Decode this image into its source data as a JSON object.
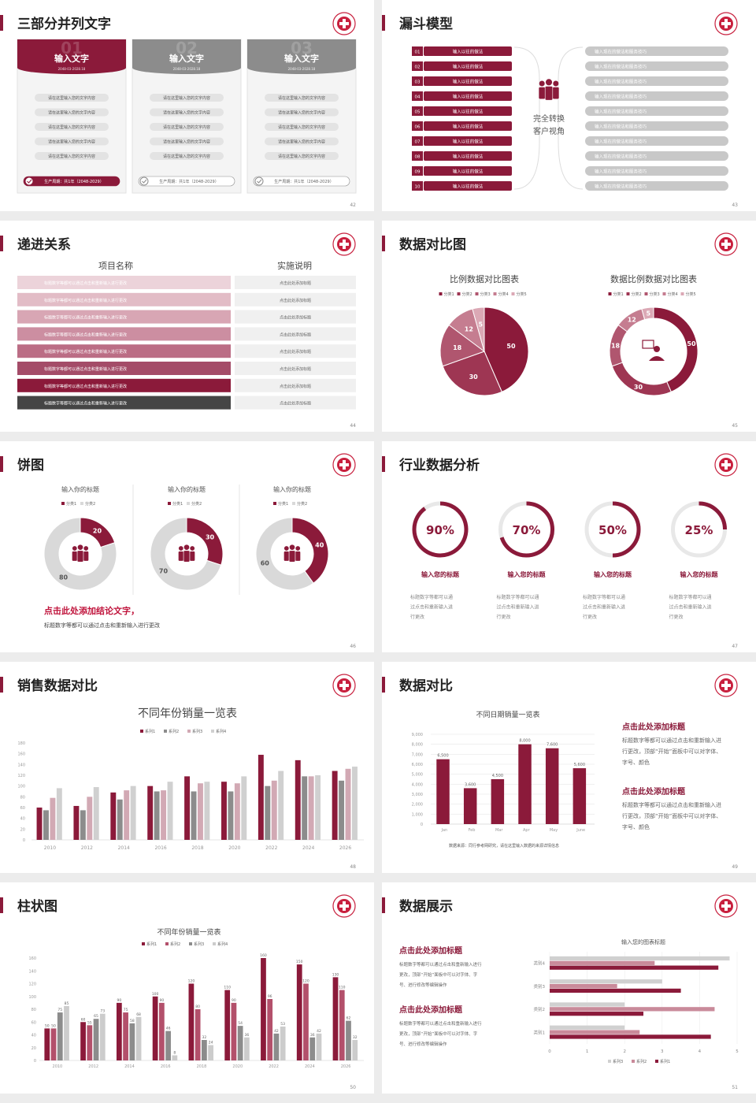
{
  "slides": [
    {
      "title": "三部分并列文字",
      "page": "42",
      "cards": [
        {
          "num": "01",
          "title": "输入文字",
          "date": "2048-03-2028.18",
          "items": [
            "请在这里输入您的文字内容",
            "请在这里输入您的文字内容",
            "请在这里输入您的文字内容",
            "请在这里输入您的文字内容",
            "请在这里输入您的文字内容"
          ],
          "footer": "生产周期：共1年（2048-2029）"
        },
        {
          "num": "02",
          "title": "输入文字",
          "date": "2048-03-2028.18",
          "items": [
            "请在这里输入您的文字内容",
            "请在这里输入您的文字内容",
            "请在这里输入您的文字内容",
            "请在这里输入您的文字内容",
            "请在这里输入您的文字内容"
          ],
          "footer": "生产周期：共1年（2048-2029）"
        },
        {
          "num": "03",
          "title": "输入文字",
          "date": "2048-03-2028.18",
          "items": [
            "请在这里输入您的文字内容",
            "请在这里输入您的文字内容",
            "请在这里输入您的文字内容",
            "请在这里输入您的文字内容",
            "请在这里输入您的文字内容"
          ],
          "footer": "生产周期：共1年（2048-2029）"
        }
      ]
    },
    {
      "title": "漏斗模型",
      "page": "43",
      "steps": [
        {
          "num": "01",
          "text": "输入以往的做法"
        },
        {
          "num": "02",
          "text": "输入以往的做法"
        },
        {
          "num": "03",
          "text": "输入以往的做法"
        },
        {
          "num": "04",
          "text": "输入以往的做法"
        },
        {
          "num": "05",
          "text": "输入以往的做法"
        },
        {
          "num": "06",
          "text": "输入以往的做法"
        },
        {
          "num": "07",
          "text": "输入以往的做法"
        },
        {
          "num": "08",
          "text": "输入以往的做法"
        },
        {
          "num": "09",
          "text": "输入以往的做法"
        },
        {
          "num": "10",
          "text": "输入以往的做法"
        }
      ],
      "center": [
        "完全转换",
        "客户视角"
      ],
      "results": [
        "输入现在的做法和服务技巧",
        "输入现在的做法和服务技巧",
        "输入现在的做法和服务技巧",
        "输入现在的做法和服务技巧",
        "输入现在的做法和服务技巧",
        "输入现在的做法和服务技巧",
        "输入现在的做法和服务技巧",
        "输入现在的做法和服务技巧",
        "输入现在的做法和服务技巧",
        "输入现在的做法和服务技巧"
      ]
    },
    {
      "title": "递进关系",
      "page": "44",
      "headers": [
        "项目名称",
        "实施说明"
      ],
      "rows": [
        [
          "标题数字等都可以通过点击和重新输入进行更改",
          "点击此处添加标题"
        ],
        [
          "标题数字等都可以通过点击和重新输入进行更改",
          "点击此处添加标题"
        ],
        [
          "标题数字等都可以通过点击和重新输入进行更改",
          "点击此处添加标题"
        ],
        [
          "标题数字等都可以通过点击和重新输入进行更改",
          "点击此处添加标题"
        ],
        [
          "标题数字等都可以通过点击和重新输入进行更改",
          "点击此处添加标题"
        ],
        [
          "标题数字等都可以通过点击和重新输入进行更改",
          "点击此处添加标题"
        ],
        [
          "标题数字等都可以通过点击和重新输入进行更改",
          "点击此处添加标题"
        ],
        [
          "标题数字等都可以通过点击和重新输入进行更改",
          "点击此处添加标题"
        ]
      ]
    },
    {
      "title": "数据对比图",
      "page": "45",
      "charts": [
        {
          "type": "pie",
          "title": "比例数据对比图表",
          "categories": [
            "分类1",
            "分类2",
            "分类3",
            "分类4",
            "分类5"
          ],
          "values": [
            50,
            30,
            18,
            12,
            5
          ],
          "colors": [
            "#8b1a3a",
            "#9e3653",
            "#b0566f",
            "#c57d90",
            "#dba8b5"
          ]
        },
        {
          "type": "donut",
          "title": "数据比例数据对比图表",
          "categories": [
            "分类1",
            "分类2",
            "分类3",
            "分类4",
            "分类5"
          ],
          "values": [
            50,
            30,
            18,
            12,
            5
          ],
          "colors": [
            "#8b1a3a",
            "#9e3653",
            "#b0566f",
            "#c57d90",
            "#dba8b5"
          ]
        }
      ]
    },
    {
      "title": "饼图",
      "page": "46",
      "charts": [
        {
          "type": "donut",
          "title": "输入你的标题",
          "categories": [
            "分类1",
            "分类2"
          ],
          "values": [
            20,
            80
          ],
          "colors": [
            "#8b1a3a",
            "#d9d9d9"
          ]
        },
        {
          "type": "donut",
          "title": "输入你的标题",
          "categories": [
            "分类1",
            "分类2"
          ],
          "values": [
            30,
            70
          ],
          "colors": [
            "#8b1a3a",
            "#d9d9d9"
          ]
        },
        {
          "type": "donut",
          "title": "输入你的标题",
          "categories": [
            "分类1",
            "分类2"
          ],
          "values": [
            40,
            60
          ],
          "colors": [
            "#8b1a3a",
            "#d9d9d9"
          ]
        }
      ],
      "conclusion": "点击此处添加结论文字，",
      "note": "标题数字等都可以通过点击和重新输入进行更改"
    },
    {
      "title": "行业数据分析",
      "page": "47",
      "values": [
        90,
        70,
        50,
        25
      ],
      "value_labels": [
        "90%",
        "70%",
        "50%",
        "25%"
      ],
      "titles": [
        "输入您的标题",
        "输入您的标题",
        "输入您的标题",
        "输入您的标题"
      ],
      "texts": [
        [
          "标题数字等都可以通",
          "过点击和重新输入进",
          "行更改"
        ],
        [
          "标题数字等都可以通",
          "过点击和重新输入进",
          "行更改"
        ],
        [
          "标题数字等都可以通",
          "过点击和重新输入进",
          "行更改"
        ],
        [
          "标题数字等都可以通",
          "过点击和重新输入进",
          "行更改"
        ]
      ]
    },
    {
      "title": "销售数据对比",
      "page": "48",
      "chart": {
        "type": "bar",
        "title": "不同年份销量一览表",
        "categories": [
          "2010",
          "2012",
          "2014",
          "2016",
          "2018",
          "2020",
          "2022",
          "2024",
          "2026"
        ],
        "series": [
          {
            "name": "系列1",
            "color": "#8b1a3a",
            "values": [
              60,
              63,
              88,
              100,
              118,
              108,
              158,
              148,
              128
            ]
          },
          {
            "name": "系列2",
            "color": "#8c8c8c",
            "values": [
              55,
              55,
              75,
              90,
              90,
              90,
              100,
              118,
              110
            ]
          },
          {
            "name": "系列3",
            "color": "#d2a9b4",
            "values": [
              78,
              80,
              92,
              92,
              105,
              105,
              110,
              118,
              132
            ]
          },
          {
            "name": "系列4",
            "color": "#d0d0d0",
            "values": [
              96,
              98,
              100,
              108,
              108,
              118,
              128,
              120,
              136
            ]
          }
        ],
        "ylim": [
          0,
          180
        ],
        "yticks": [
          0,
          20,
          40,
          60,
          80,
          100,
          120,
          140,
          160,
          180
        ]
      }
    },
    {
      "title": "数据对比",
      "page": "49",
      "chart": {
        "type": "bar",
        "title": "不同日期销量一览表",
        "categories": [
          "Jan",
          "Feb",
          "Mar",
          "Apr",
          "May",
          "June"
        ],
        "values": [
          6500,
          3600,
          4500,
          8000,
          7600,
          5600
        ],
        "value_labels": [
          "6,500",
          "3,600",
          "4,500",
          "8,000",
          "7,600",
          "5,600"
        ],
        "color": "#8b1a3a",
        "ylim": [
          0,
          9000
        ],
        "yticks": [
          0,
          {
            "value": 1000,
            "label": "1,000"
          },
          {
            "value": 2000,
            "label": "2,000"
          },
          {
            "value": 3000,
            "label": "3,000"
          },
          {
            "value": 4000,
            "label": "4,000"
          },
          {
            "value": 5000,
            "label": "5,000"
          },
          {
            "value": 6000,
            "label": "6,000"
          },
          {
            "value": 7000,
            "label": "7,000"
          },
          {
            "value": 8000,
            "label": "8,000"
          },
          {
            "value": 9000,
            "label": "9,000"
          }
        ],
        "grid": true
      },
      "note": "数据来源：同行参考网研究，请在这里输入数据的来源详情信息",
      "blocks": [
        {
          "heading": "点击此处添加标题",
          "lines": [
            "标题数字等都可以通过点击和重新输入进",
            "行更改，顶部“开始”面板中可以对字体、",
            "字号、颜色"
          ]
        },
        {
          "heading": "点击此处添加标题",
          "lines": [
            "标题数字等都可以通过点击和重新输入进",
            "行更改，顶部“开始”面板中可以对字体、",
            "字号、颜色"
          ]
        }
      ]
    },
    {
      "title": "柱状图",
      "page": "50",
      "chart": {
        "type": "bar",
        "title": "不同年份销量一览表",
        "categories": [
          "2010",
          "2012",
          "2014",
          "2016",
          "2018",
          "2020",
          "2022",
          "2024",
          "2026"
        ],
        "series": [
          {
            "name": "系列1",
            "color": "#8b1a3a",
            "values": [
              50,
              60,
              90,
              100,
              120,
              110,
              160,
              150,
              130
            ]
          },
          {
            "name": "系列2",
            "color": "#b3506b",
            "values": [
              50,
              55,
              75,
              90,
              80,
              90,
              96,
              120,
              110
            ]
          },
          {
            "name": "系列3",
            "color": "#8c8c8c",
            "values": [
              75,
              65,
              58,
              46,
              32,
              54,
              42,
              36,
              62
            ]
          },
          {
            "name": "系列4",
            "color": "#cccccc",
            "values": [
              85,
              73,
              68,
              8,
              24,
              36,
              53,
              42,
              32
            ]
          }
        ],
        "ylim": [
          0,
          160
        ],
        "yticks": [
          0,
          20,
          40,
          60,
          80,
          100,
          120,
          140,
          160
        ]
      }
    },
    {
      "title": "数据展示",
      "page": "51",
      "blocks": [
        {
          "heading": "点击此处添加标题",
          "lines": [
            "标题数字等都可以通过点击和重新输入进行",
            "更改，顶部“开始”面板中可以对字体、字",
            "号、进行修改等编辑操作"
          ]
        },
        {
          "heading": "点击此处添加标题",
          "lines": [
            "标题数字等都可以通过点击和重新输入进行",
            "更改，顶部“开始”面板中可以对字体、字",
            "号、进行修改等编辑操作"
          ]
        }
      ],
      "chart": {
        "type": "hbar",
        "title": "输入您的图表标题",
        "categories": [
          "类别1",
          "类别2",
          "类别3",
          "类别4"
        ],
        "series": [
          {
            "name": "系列1",
            "color": "#8b1a3a",
            "values": [
              4.3,
              2.5,
              3.5,
              4.5
            ]
          },
          {
            "name": "系列2",
            "color": "#c98a9a",
            "values": [
              2.4,
              4.4,
              1.8,
              2.8
            ]
          },
          {
            "name": "系列3",
            "color": "#d0d0d0",
            "values": [
              2,
              2,
              3,
              4.8
            ]
          }
        ],
        "xlim": [
          0,
          5
        ],
        "xticks": [
          0,
          1,
          2,
          3,
          4,
          5
        ],
        "grid": true
      }
    }
  ]
}
